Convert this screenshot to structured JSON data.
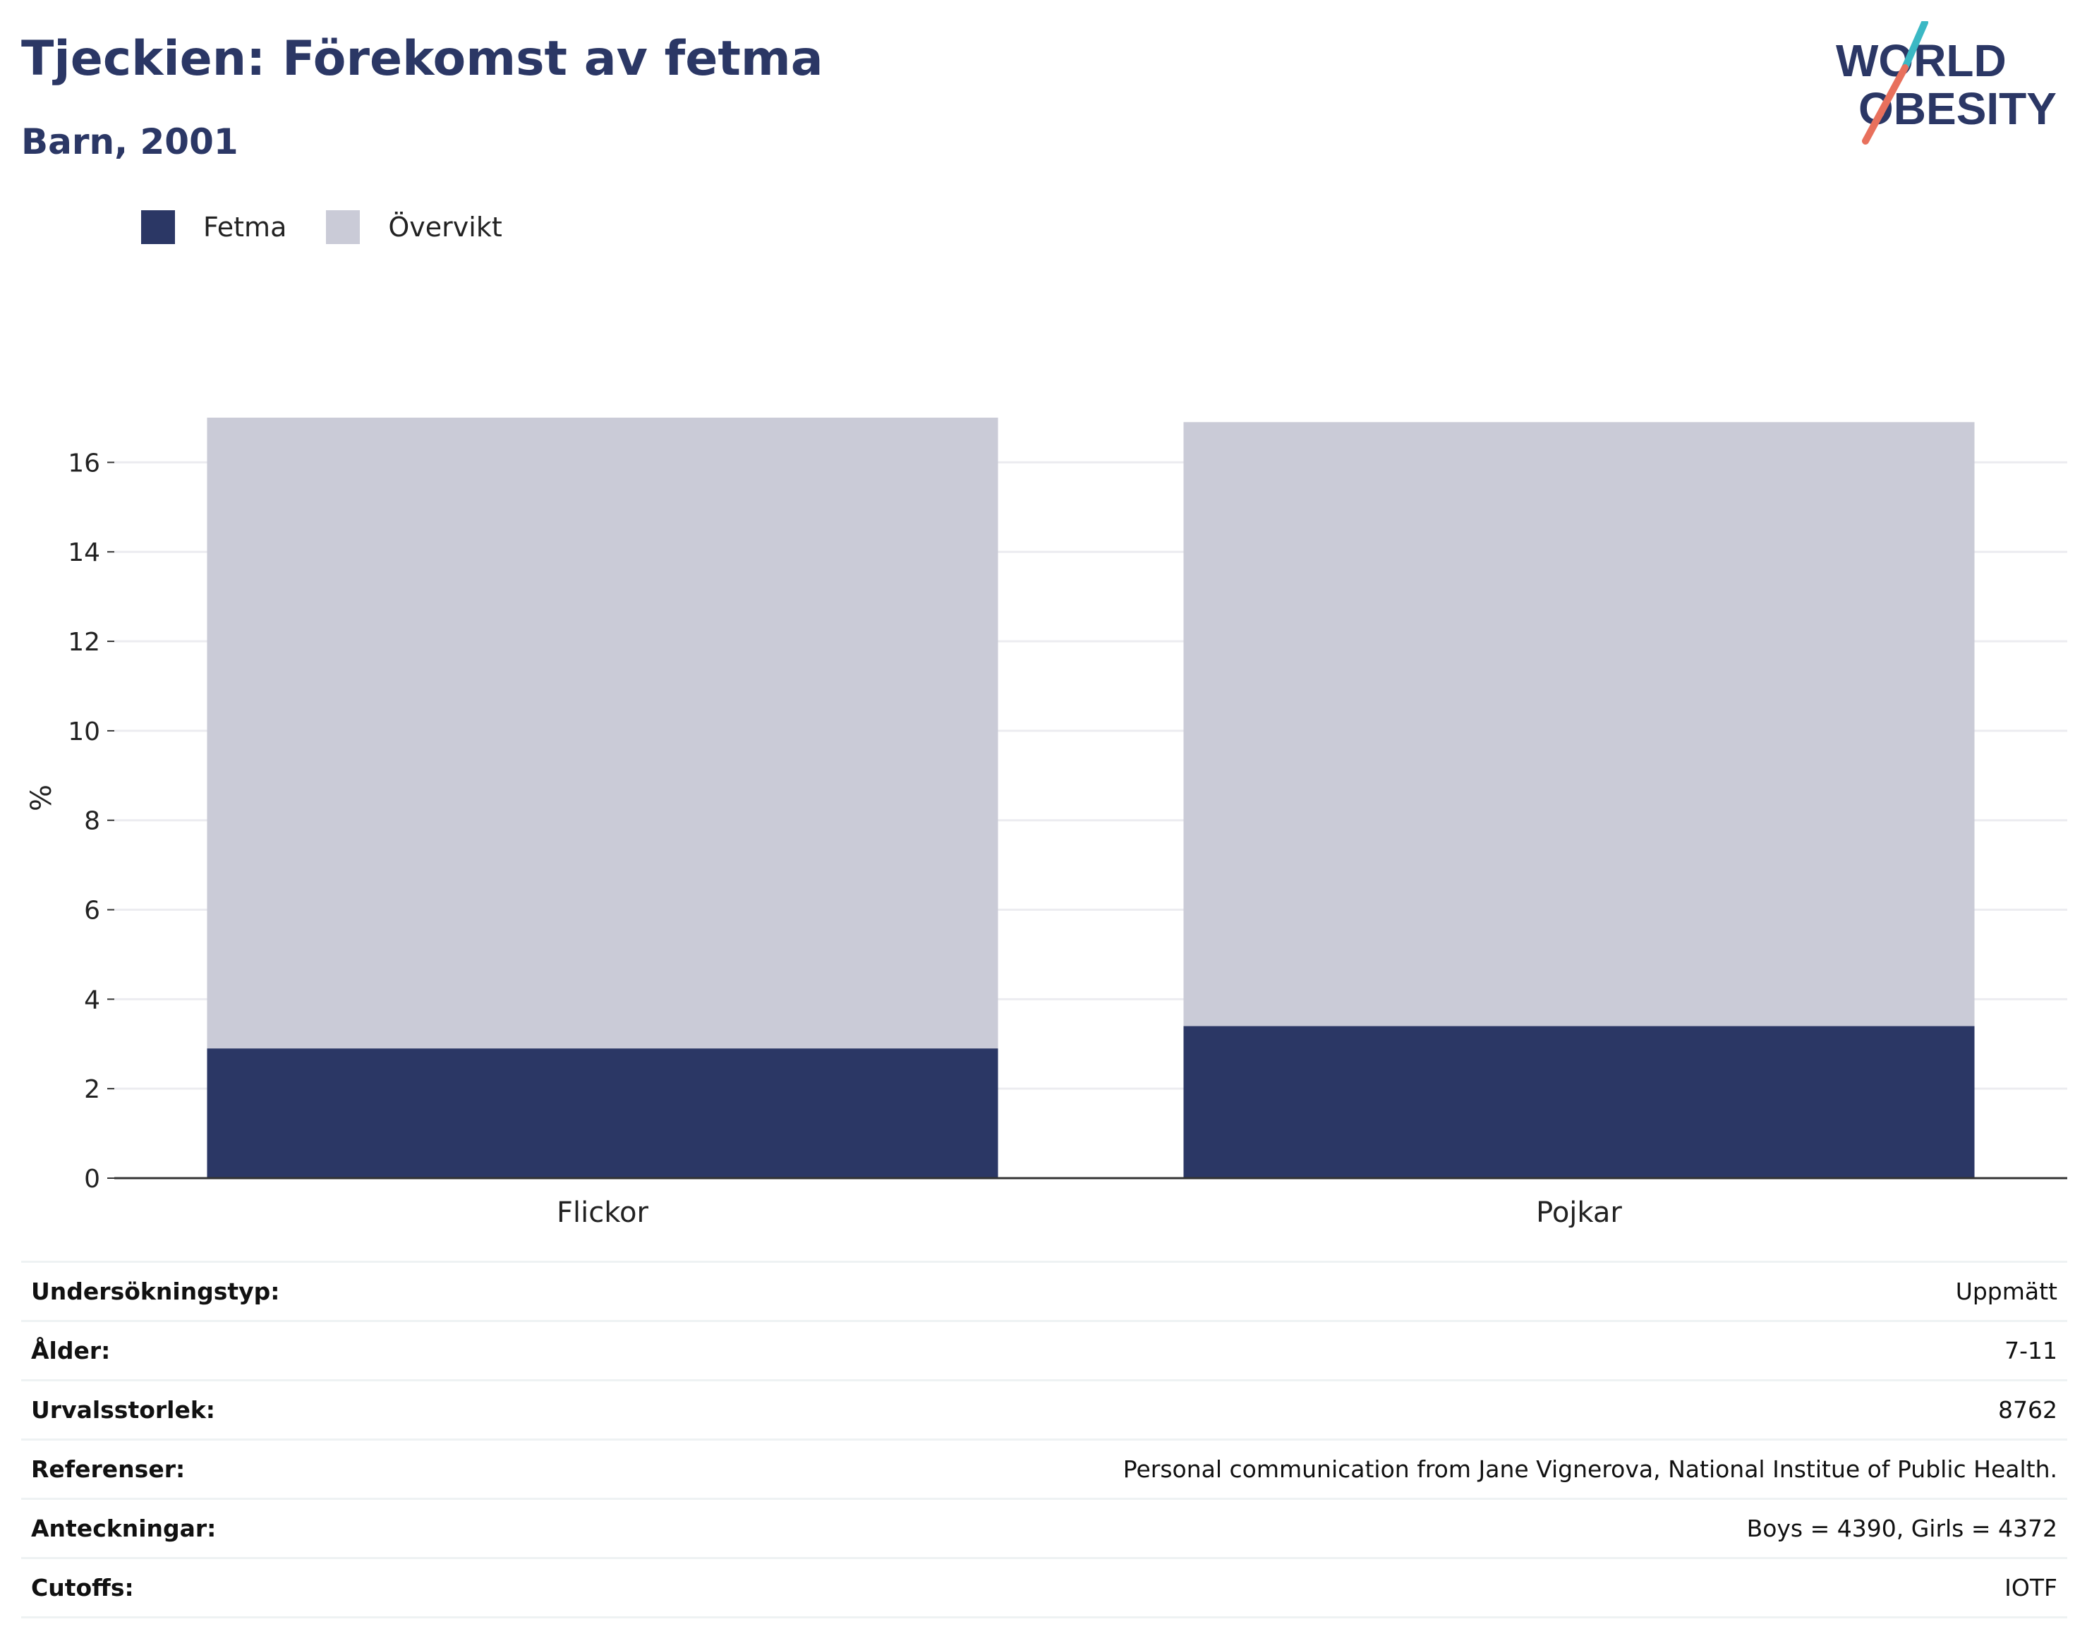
{
  "header": {
    "title": "Tjeckien: Förekomst av fetma",
    "subtitle": "Barn, 2001"
  },
  "logo": {
    "line1": "WORLD",
    "line2": "OBESITY",
    "colors": {
      "text": "#2b3765",
      "slash_top": "#3bb8c4",
      "slash_bottom": "#e8705c"
    }
  },
  "legend": [
    {
      "label": "Fetma",
      "color": "#2b3765"
    },
    {
      "label": "Övervikt",
      "color": "#cacbd7"
    }
  ],
  "chart_data": {
    "type": "bar",
    "stacked": true,
    "categories": [
      "Flickor",
      "Pojkar"
    ],
    "series": [
      {
        "name": "Fetma",
        "color": "#2b3765",
        "values": [
          2.9,
          3.4
        ]
      },
      {
        "name": "Övervikt",
        "color": "#cacbd7",
        "values": [
          14.1,
          13.5
        ]
      }
    ],
    "ylabel": "%",
    "ylim": [
      0,
      17
    ],
    "yticks": [
      0,
      2,
      4,
      6,
      8,
      10,
      12,
      14,
      16
    ],
    "grid": true
  },
  "info": [
    {
      "key": "Undersökningstyp:",
      "value": "Uppmätt"
    },
    {
      "key": "Ålder:",
      "value": "7-11"
    },
    {
      "key": "Urvalsstorlek:",
      "value": "8762"
    },
    {
      "key": "Referenser:",
      "value": "Personal communication from Jane Vignerova, National Institue of Public Health."
    },
    {
      "key": "Anteckningar:",
      "value": "Boys = 4390, Girls = 4372"
    },
    {
      "key": "Cutoffs:",
      "value": "IOTF"
    }
  ]
}
